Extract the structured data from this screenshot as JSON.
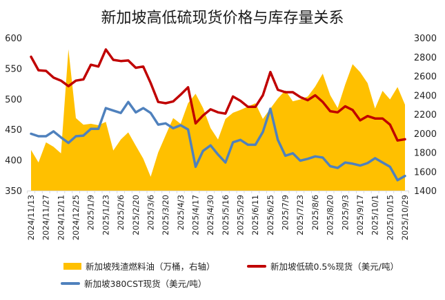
{
  "chart_data": {
    "type": "line",
    "title": "新加坡高低硫现货价格与库存量关系",
    "x": [
      "2024/11/13",
      "2024/11/20",
      "2024/11/27",
      "2024/12/4",
      "2024/12/11",
      "2024/12/18",
      "2024/12/25",
      "2025/1/1",
      "2025/1/9",
      "2025/1/16",
      "2025/1/23",
      "2025/1/30",
      "2025/2/6",
      "2025/2/13",
      "2025/2/20",
      "2025/2/27",
      "2025/3/6",
      "2025/3/13",
      "2025/3/20",
      "2025/3/27",
      "2025/4/3",
      "2025/4/10",
      "2025/4/17",
      "2025/4/24",
      "2025/4/30",
      "2025/5/8",
      "2025/5/16",
      "2025/5/22",
      "2025/5/29",
      "2025/6/5",
      "2025/6/11",
      "2025/6/18",
      "2025/6/25",
      "2025/7/2",
      "2025/7/9",
      "2025/7/16",
      "2025/7/23",
      "2025/7/30",
      "2025/8/6",
      "2025/8/13",
      "2025/8/20",
      "2025/8/27",
      "2025/9/3",
      "2025/9/10",
      "2025/9/17",
      "2025/9/24",
      "2025/10/1",
      "2025/10/8",
      "2025/10/15",
      "2025/10/22",
      "2025/10/29"
    ],
    "xtick_labels": [
      "2024/11/13",
      "2024/11/27",
      "2024/12/11",
      "2024/12/25",
      "2025/1/9",
      "2025/1/23",
      "2025/2/6",
      "2025/2/20",
      "2025/3/6",
      "2025/3/20",
      "2025/4/3",
      "2025/4/17",
      "2025/4/30",
      "2025/5/16",
      "2025/5/29",
      "2025/6/11",
      "2025/6/25",
      "2025/7/9",
      "2025/7/23",
      "2025/8/6",
      "2025/8/20",
      "2025/9/3",
      "2025/9/17",
      "2025/10/1",
      "2025/10/15",
      "2025/10/29"
    ],
    "left_axis": {
      "ylim": [
        350,
        600
      ],
      "ticks": [
        "350",
        "400",
        "450",
        "500",
        "550",
        "600"
      ]
    },
    "right_axis": {
      "ylim": [
        1400,
        3000
      ],
      "ticks": [
        "1400",
        "1600",
        "1800",
        "2000",
        "2200",
        "2400",
        "2600",
        "2800",
        "3000"
      ]
    },
    "series": [
      {
        "name": "新加坡残渣燃料油（万桶，右轴）",
        "type": "area",
        "axis": "right",
        "color": "#FFC000",
        "values": [
          1825,
          1695,
          1905,
          1860,
          1790,
          2880,
          2160,
          2090,
          2100,
          2085,
          2120,
          1820,
          1935,
          2010,
          1870,
          1735,
          1545,
          1800,
          1980,
          2160,
          2100,
          2315,
          2415,
          2265,
          2055,
          1935,
          2150,
          2215,
          2245,
          2280,
          2315,
          2150,
          2260,
          2365,
          2450,
          2335,
          2355,
          2385,
          2490,
          2625,
          2400,
          2265,
          2510,
          2725,
          2640,
          2525,
          2260,
          2445,
          2355,
          2485,
          2300
        ]
      },
      {
        "name": "新加坡低硫0.5%现货（美元/吨）",
        "type": "line",
        "axis": "left",
        "color": "#C00000",
        "values": [
          569,
          547,
          546,
          535,
          530,
          521,
          530,
          532,
          556,
          553,
          581,
          564,
          562,
          563,
          551,
          553,
          526,
          495,
          493,
          496,
          507,
          519,
          460,
          473,
          483,
          478,
          476,
          504,
          497,
          487,
          487,
          506,
          544,
          515,
          511,
          511,
          503,
          498,
          506,
          495,
          480,
          478,
          488,
          482,
          465,
          472,
          468,
          468,
          458,
          432,
          434
        ]
      },
      {
        "name": "新加坡380CST现货（美元/吨）",
        "type": "line",
        "axis": "left",
        "color": "#4F81BD",
        "values": [
          443,
          439,
          439,
          447,
          437,
          428,
          439,
          440,
          451,
          451,
          485,
          481,
          477,
          495,
          478,
          485,
          477,
          458,
          460,
          452,
          457,
          450,
          389,
          415,
          424,
          409,
          396,
          429,
          433,
          425,
          425,
          446,
          484,
          433,
          407,
          411,
          399,
          402,
          406,
          404,
          390,
          387,
          396,
          394,
          391,
          395,
          403,
          396,
          389,
          367,
          374
        ]
      }
    ],
    "legend": {
      "position": "bottom",
      "items": [
        "新加坡残渣燃料油（万桶，右轴）",
        "新加坡低硫0.5%现货（美元/吨）",
        "新加坡380CST现货（美元/吨）"
      ]
    },
    "grid": false
  }
}
